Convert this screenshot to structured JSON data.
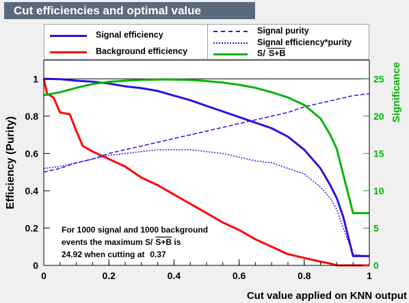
{
  "title": "Cut efficiencies and optimal value",
  "legend_left": [
    {
      "label": "Signal efficiency",
      "color": "#2a10e0",
      "style": "solid"
    },
    {
      "label": "Background efficiency",
      "color": "#ff0000",
      "style": "solid"
    }
  ],
  "legend_right": [
    {
      "label": "Signal purity",
      "color": "#2a10e0",
      "style": "dash"
    },
    {
      "label": "Signal efficiency*purity",
      "color": "#2a10e0",
      "style": "dot"
    },
    {
      "label": "S/",
      "label_sqrt": "S+B",
      "color": "#00b400",
      "style": "solid"
    }
  ],
  "annotation": {
    "line1": "For 1000 signal and 1000 background",
    "line2a": "events the maximum S/",
    "line2_sqrt": "S+B",
    "line2b": " is",
    "line3a": "24.92 when cutting at",
    "line3b": "0.37"
  },
  "chart_data": {
    "type": "line",
    "xlabel": "Cut value applied on KNN output",
    "ylabel": "Efficiency (Purity)",
    "y2label": "Significance",
    "xlim": [
      0,
      1
    ],
    "ylim": [
      0,
      1.1
    ],
    "y2lim": [
      0,
      27.5
    ],
    "x_ticks": [
      "0",
      "0.2",
      "0.4",
      "0.6",
      "0.8",
      "1"
    ],
    "y_ticks": [
      "0",
      "0.2",
      "0.4",
      "0.6",
      "0.8",
      "1"
    ],
    "y2_ticks": [
      "0",
      "5",
      "10",
      "15",
      "20",
      "25"
    ],
    "colors": {
      "signal": "#2a10e0",
      "background": "#ff0000",
      "significance": "#00b400"
    },
    "series": [
      {
        "name": "Signal efficiency",
        "axis": "left",
        "style": "solid",
        "color": "#2a10e0",
        "x": [
          0,
          0.05,
          0.1,
          0.15,
          0.2,
          0.25,
          0.3,
          0.35,
          0.4,
          0.45,
          0.5,
          0.55,
          0.6,
          0.65,
          0.7,
          0.75,
          0.8,
          0.85,
          0.88,
          0.9,
          0.92,
          0.95,
          1.0
        ],
        "y": [
          1.0,
          0.998,
          0.99,
          0.985,
          0.975,
          0.96,
          0.95,
          0.935,
          0.91,
          0.885,
          0.855,
          0.825,
          0.795,
          0.765,
          0.735,
          0.69,
          0.62,
          0.52,
          0.43,
          0.36,
          0.26,
          0.05,
          0.05
        ]
      },
      {
        "name": "Background efficiency",
        "axis": "left",
        "style": "solid",
        "color": "#ff0000",
        "x": [
          0,
          0.01,
          0.03,
          0.05,
          0.08,
          0.1,
          0.12,
          0.15,
          0.2,
          0.25,
          0.3,
          0.35,
          0.4,
          0.45,
          0.5,
          0.55,
          0.6,
          0.65,
          0.7,
          0.75,
          0.8,
          0.85,
          0.88,
          0.9,
          0.95,
          1.0
        ],
        "y": [
          1.0,
          0.92,
          0.9,
          0.82,
          0.81,
          0.72,
          0.64,
          0.61,
          0.57,
          0.53,
          0.47,
          0.43,
          0.38,
          0.33,
          0.28,
          0.23,
          0.19,
          0.14,
          0.1,
          0.06,
          0.04,
          0.02,
          0.01,
          0.0,
          0.0,
          0.0
        ]
      },
      {
        "name": "Signal purity",
        "axis": "left",
        "style": "dash",
        "color": "#2a10e0",
        "x": [
          0,
          0.05,
          0.1,
          0.15,
          0.2,
          0.25,
          0.3,
          0.35,
          0.4,
          0.45,
          0.5,
          0.55,
          0.6,
          0.65,
          0.7,
          0.75,
          0.8,
          0.85,
          0.9,
          0.95,
          1.0
        ],
        "y": [
          0.5,
          0.52,
          0.55,
          0.57,
          0.6,
          0.62,
          0.64,
          0.66,
          0.68,
          0.7,
          0.72,
          0.74,
          0.76,
          0.78,
          0.8,
          0.82,
          0.85,
          0.87,
          0.89,
          0.91,
          0.92
        ]
      },
      {
        "name": "Signal efficiency*purity",
        "axis": "left",
        "style": "dot",
        "color": "#2a10e0",
        "x": [
          0,
          0.05,
          0.1,
          0.15,
          0.2,
          0.25,
          0.3,
          0.35,
          0.4,
          0.45,
          0.5,
          0.55,
          0.6,
          0.65,
          0.7,
          0.75,
          0.8,
          0.85,
          0.88,
          0.9,
          0.92,
          0.95,
          1.0
        ],
        "y": [
          0.52,
          0.53,
          0.55,
          0.57,
          0.59,
          0.6,
          0.61,
          0.62,
          0.62,
          0.62,
          0.61,
          0.6,
          0.58,
          0.56,
          0.55,
          0.52,
          0.49,
          0.42,
          0.36,
          0.3,
          0.2,
          0.06,
          0.05
        ]
      },
      {
        "name": "S/√S+B",
        "axis": "right",
        "style": "solid",
        "color": "#00b400",
        "x": [
          0,
          0.05,
          0.1,
          0.15,
          0.2,
          0.25,
          0.3,
          0.35,
          0.37,
          0.4,
          0.45,
          0.5,
          0.55,
          0.6,
          0.65,
          0.7,
          0.75,
          0.8,
          0.85,
          0.88,
          0.9,
          0.95,
          1.0
        ],
        "y": [
          22.8,
          23.2,
          23.8,
          24.3,
          24.6,
          24.75,
          24.85,
          24.9,
          24.92,
          24.9,
          24.85,
          24.7,
          24.5,
          24.2,
          23.8,
          23.2,
          22.5,
          21.5,
          19.7,
          17.5,
          15.6,
          7.0,
          7.0
        ]
      }
    ]
  }
}
